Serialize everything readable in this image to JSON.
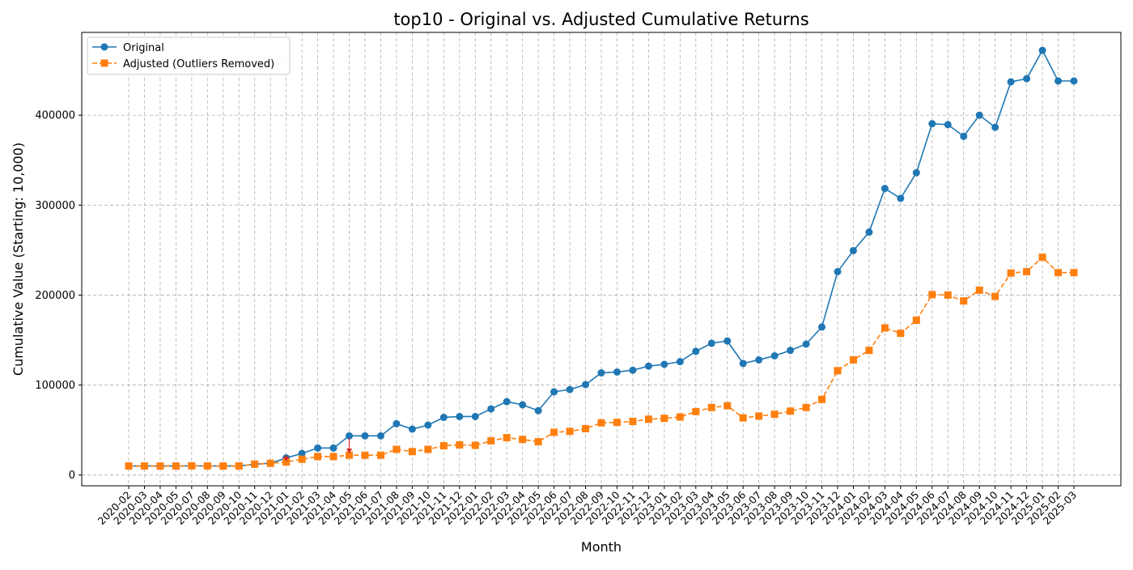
{
  "chart_data": {
    "type": "line",
    "title": "top10 - Original vs. Adjusted Cumulative Returns",
    "xlabel": "Month",
    "ylabel": "Cumulative Value (Starting: 10,000)",
    "ylim": [
      -12000,
      492000
    ],
    "yticks": [
      0,
      100000,
      200000,
      300000,
      400000
    ],
    "grid": true,
    "legend_position": "top-left",
    "categories": [
      "2020-02",
      "2020-03",
      "2020-04",
      "2020-05",
      "2020-07",
      "2020-08",
      "2020-09",
      "2020-10",
      "2020-11",
      "2020-12",
      "2021-01",
      "2021-02",
      "2021-03",
      "2021-04",
      "2021-05",
      "2021-06",
      "2021-07",
      "2021-08",
      "2021-09",
      "2021-10",
      "2021-11",
      "2021-12",
      "2022-01",
      "2022-02",
      "2022-03",
      "2022-04",
      "2022-05",
      "2022-06",
      "2022-07",
      "2022-08",
      "2022-09",
      "2022-10",
      "2022-11",
      "2022-12",
      "2023-01",
      "2023-02",
      "2023-03",
      "2023-04",
      "2023-05",
      "2023-06",
      "2023-07",
      "2023-08",
      "2023-09",
      "2023-10",
      "2023-11",
      "2023-12",
      "2024-01",
      "2024-02",
      "2024-03",
      "2024-04",
      "2024-05",
      "2024-06",
      "2024-07",
      "2024-08",
      "2024-09",
      "2024-10",
      "2024-11",
      "2024-12",
      "2025-01",
      "2025-02",
      "2025-03"
    ],
    "series": [
      {
        "name": "Original",
        "color": "#1f77b4",
        "marker": "circle",
        "line_style": "solid",
        "values": [
          10000,
          10000,
          10000,
          10000,
          10200,
          10100,
          10000,
          10000,
          12000,
          13000,
          19000,
          24000,
          30000,
          30000,
          43500,
          43500,
          43500,
          57000,
          51000,
          55500,
          64000,
          65000,
          65000,
          73500,
          81500,
          78000,
          71500,
          92500,
          95000,
          100500,
          113500,
          114500,
          116500,
          121000,
          123000,
          126000,
          137500,
          146500,
          149000,
          124000,
          128000,
          132500,
          138500,
          145500,
          164500,
          226000,
          249500,
          270000,
          318500,
          307500,
          336000,
          390500,
          389500,
          376500,
          400000,
          386500,
          437000,
          440500,
          472000,
          438000,
          438000
        ]
      },
      {
        "name": "Adjusted (Outliers Removed)",
        "color": "#ff7f0e",
        "marker": "square",
        "line_style": "dashed",
        "values": [
          10000,
          10000,
          10000,
          10000,
          10200,
          10100,
          10000,
          10000,
          12000,
          13000,
          14500,
          17500,
          20500,
          20500,
          22000,
          22000,
          22000,
          28500,
          26000,
          28500,
          32500,
          33500,
          33000,
          38000,
          41500,
          39500,
          37000,
          47500,
          48500,
          51500,
          58000,
          58500,
          59500,
          62000,
          63000,
          64500,
          70500,
          75000,
          77000,
          63500,
          65500,
          67500,
          71000,
          75000,
          84000,
          116000,
          128000,
          138500,
          163500,
          157500,
          172000,
          200500,
          200000,
          193500,
          205500,
          198500,
          224500,
          226000,
          242000,
          225000,
          225000
        ]
      }
    ],
    "annotations": [
      {
        "type": "arrow",
        "category": "2021-01",
        "from_value": 22000,
        "to_value": 15000,
        "color": "#d62728"
      },
      {
        "type": "arrow",
        "category": "2021-05",
        "from_value": 41000,
        "to_value": 24000,
        "color": "#d62728"
      }
    ]
  }
}
